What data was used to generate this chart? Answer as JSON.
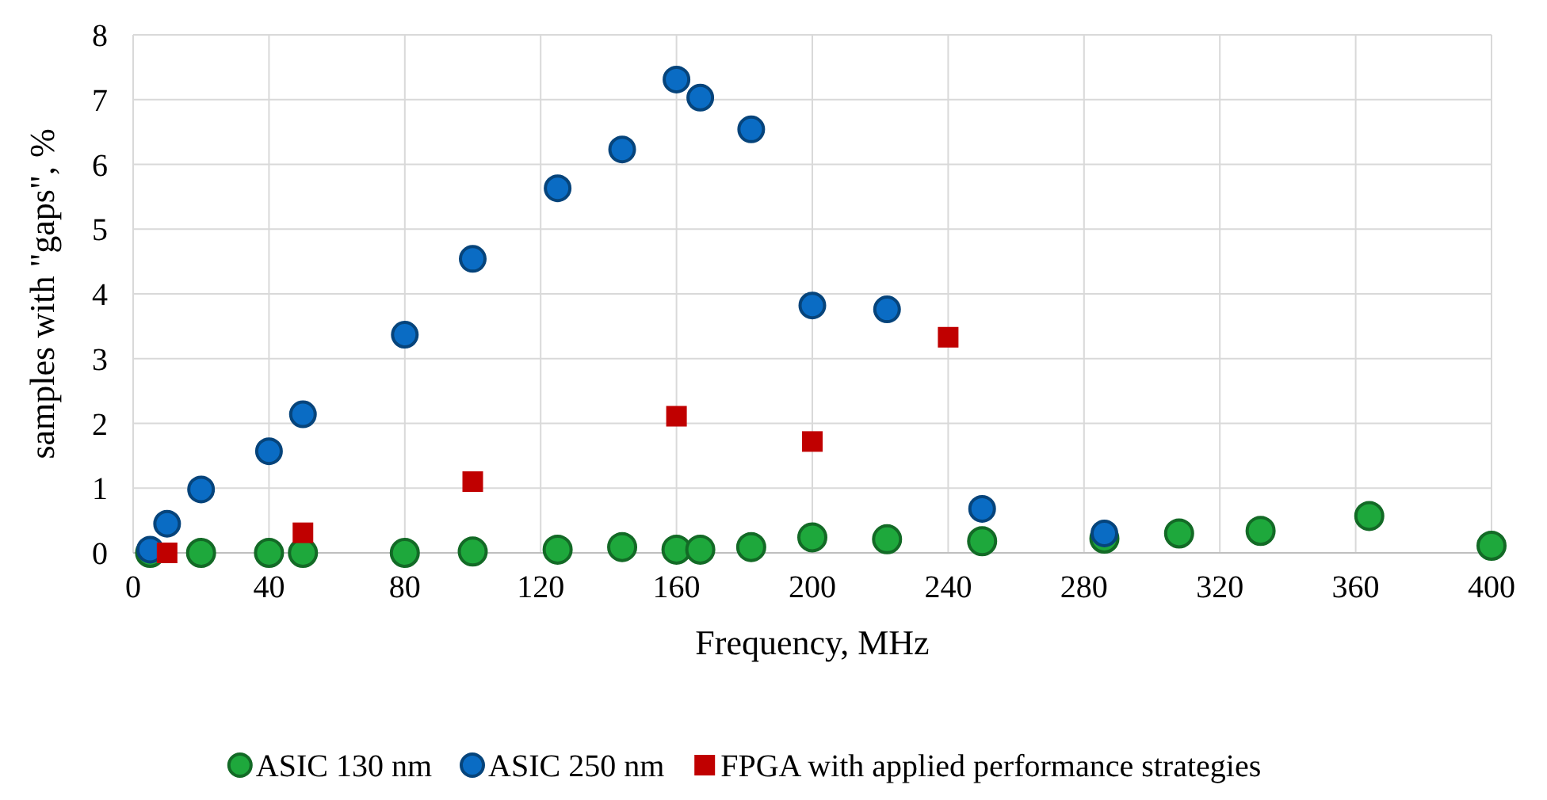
{
  "chart_data": {
    "type": "scatter",
    "xlabel": "Frequency, MHz",
    "ylabel": "samples with \"gaps\", %",
    "xlim": [
      0,
      400
    ],
    "xticks": [
      0,
      40,
      80,
      120,
      160,
      200,
      240,
      280,
      320,
      360,
      400
    ],
    "ylim": [
      0,
      8
    ],
    "yticks": [
      0,
      1,
      2,
      3,
      4,
      5,
      6,
      7,
      8
    ],
    "grid": true,
    "legend": "bottom",
    "series": [
      {
        "name": "ASIC 130 nm",
        "color": "#1ea83c",
        "marker": "circle",
        "x": [
          5,
          20,
          40,
          50,
          80,
          100,
          125,
          144,
          160,
          167,
          182,
          200,
          222,
          250,
          286,
          308,
          332,
          364,
          400
        ],
        "values": [
          0,
          0,
          0,
          0,
          0,
          0.02,
          0.05,
          0.09,
          0.05,
          0.05,
          0.09,
          0.24,
          0.21,
          0.18,
          0.22,
          0.3,
          0.34,
          0.57,
          0.11
        ]
      },
      {
        "name": "ASIC 250 nm",
        "color": "#0a6cc4",
        "marker": "circle",
        "x": [
          5,
          10,
          20,
          40,
          50,
          80,
          100,
          125,
          144,
          160,
          167,
          182,
          200,
          222,
          250,
          286
        ],
        "values": [
          0.05,
          0.45,
          0.98,
          1.57,
          2.14,
          3.37,
          4.54,
          5.63,
          6.23,
          7.31,
          7.03,
          6.54,
          3.82,
          3.76,
          0.68,
          0.3
        ]
      },
      {
        "name": "FPGA with applied performance strategies",
        "color": "#c00000",
        "marker": "square",
        "x": [
          10,
          50,
          100,
          160,
          200,
          240
        ],
        "values": [
          0,
          0.31,
          1.1,
          2.11,
          1.72,
          3.33
        ]
      }
    ]
  }
}
